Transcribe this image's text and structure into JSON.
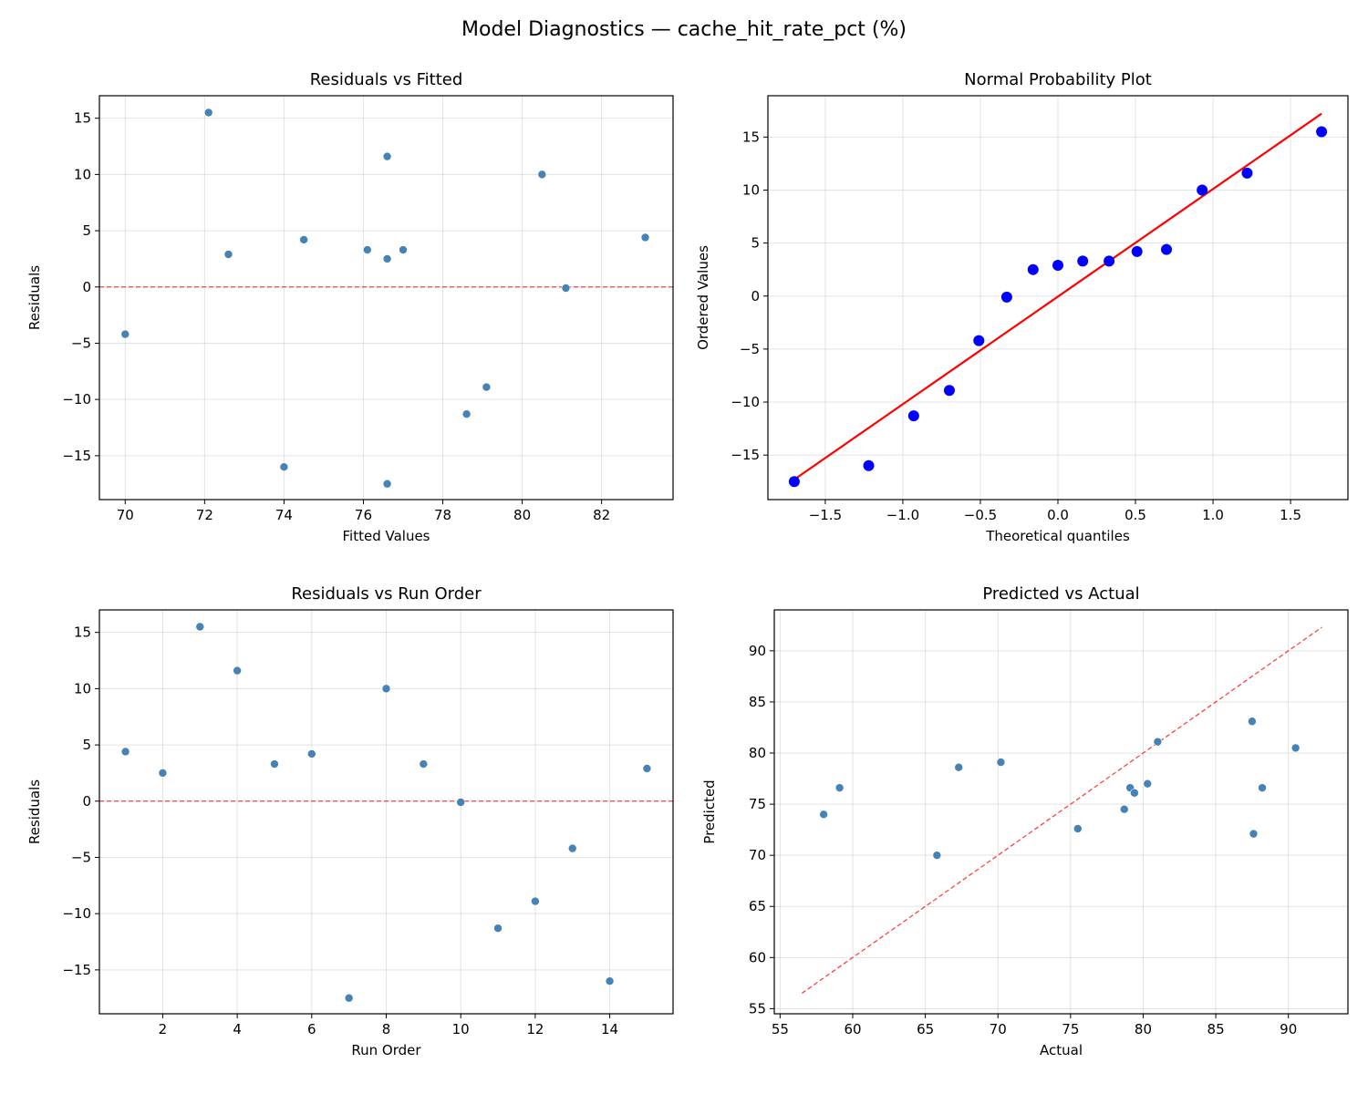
{
  "suptitle": "Model Diagnostics — cache_hit_rate_pct (%)",
  "chart_data": [
    {
      "type": "scatter",
      "title": "Residuals vs Fitted",
      "xlabel": "Fitted Values",
      "ylabel": "Residuals",
      "xlim": [
        69.35,
        83.8
      ],
      "ylim": [
        -18.9,
        17.0
      ],
      "xticks": [
        70,
        72,
        74,
        76,
        78,
        80,
        82
      ],
      "yticks": [
        -15,
        -10,
        -5,
        0,
        5,
        10,
        15
      ],
      "grid": true,
      "point_color": "#4682b4",
      "x": [
        83.1,
        76.6,
        72.1,
        76.6,
        76.1,
        74.5,
        76.6,
        80.5,
        77.0,
        81.1,
        78.6,
        79.1,
        70.0,
        74.0,
        72.6
      ],
      "y": [
        4.4,
        2.5,
        15.5,
        11.6,
        3.3,
        4.2,
        -17.5,
        10.0,
        3.3,
        -0.1,
        -11.3,
        -8.9,
        -4.2,
        -16.0,
        2.9
      ],
      "reference_line": {
        "type": "horizontal",
        "y": 0,
        "color": "#ff0000",
        "style": "dashed"
      }
    },
    {
      "type": "scatter",
      "title": "Normal Probability Plot",
      "xlabel": "Theoretical quantiles",
      "ylabel": "Ordered Values",
      "xlim": [
        -1.87,
        1.87
      ],
      "ylim": [
        -19.2,
        18.9
      ],
      "xticks": [
        -1.5,
        -1.0,
        -0.5,
        0.0,
        0.5,
        1.0,
        1.5
      ],
      "yticks": [
        -15,
        -10,
        -5,
        0,
        5,
        10,
        15
      ],
      "grid": true,
      "point_color": "#0000ff",
      "x": [
        -1.7,
        -1.22,
        -0.93,
        -0.7,
        -0.51,
        -0.33,
        -0.16,
        0.0,
        0.16,
        0.33,
        0.51,
        0.7,
        0.93,
        1.22,
        1.7
      ],
      "y": [
        -17.5,
        -16.0,
        -11.3,
        -8.9,
        -4.2,
        -0.1,
        2.5,
        2.9,
        3.3,
        3.3,
        4.2,
        4.4,
        10.0,
        11.6,
        15.5
      ],
      "reference_line": {
        "type": "fit",
        "slope": 10.15,
        "intercept": -0.05,
        "x_range": [
          -1.7,
          1.7
        ],
        "color": "#ff0000",
        "style": "solid"
      }
    },
    {
      "type": "scatter",
      "title": "Residuals vs Run Order",
      "xlabel": "Run Order",
      "ylabel": "Residuals",
      "xlim": [
        0.3,
        15.7
      ],
      "ylim": [
        -18.9,
        17.0
      ],
      "xticks": [
        2,
        4,
        6,
        8,
        10,
        12,
        14
      ],
      "yticks": [
        -15,
        -10,
        -5,
        0,
        5,
        10,
        15
      ],
      "grid": true,
      "point_color": "#4682b4",
      "x": [
        1,
        2,
        3,
        4,
        5,
        6,
        7,
        8,
        9,
        10,
        11,
        12,
        13,
        14,
        15
      ],
      "y": [
        4.4,
        2.5,
        15.5,
        11.6,
        3.3,
        4.2,
        -17.5,
        10.0,
        3.3,
        -0.1,
        -11.3,
        -8.9,
        -4.2,
        -16.0,
        2.9
      ],
      "reference_line": {
        "type": "horizontal",
        "y": 0,
        "color": "#ff0000",
        "style": "dashed"
      }
    },
    {
      "type": "scatter",
      "title": "Predicted vs Actual",
      "xlabel": "Actual",
      "ylabel": "Predicted",
      "xlim": [
        54.6,
        94.1
      ],
      "ylim": [
        54.5,
        94.0
      ],
      "xticks": [
        55,
        60,
        65,
        70,
        75,
        80,
        85,
        90
      ],
      "yticks": [
        55,
        60,
        65,
        70,
        75,
        80,
        85,
        90
      ],
      "grid": true,
      "point_color": "#4682b4",
      "x": [
        87.5,
        79.1,
        87.6,
        88.2,
        79.4,
        78.7,
        59.1,
        90.5,
        80.3,
        81.0,
        67.3,
        70.2,
        65.8,
        58.0,
        75.5
      ],
      "y": [
        83.1,
        76.6,
        72.1,
        76.6,
        76.1,
        74.5,
        76.6,
        80.5,
        77.0,
        81.1,
        78.6,
        79.1,
        70.0,
        74.0,
        72.6
      ],
      "reference_line": {
        "type": "diagonal",
        "x_range": [
          56.5,
          92.3
        ],
        "color": "#ff0000",
        "style": "dashed"
      }
    }
  ]
}
